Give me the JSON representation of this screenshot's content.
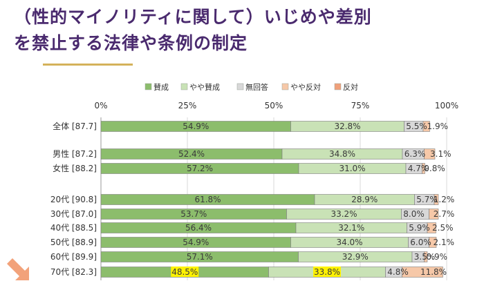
{
  "title": {
    "line1": "（性的マイノリティに関して）いじめや差別",
    "line2": "を禁止する法律や条例の制定"
  },
  "chart_data": {
    "type": "bar",
    "orientation": "horizontal",
    "stacked": "100%",
    "legend_position": "top",
    "xlim": [
      0,
      100
    ],
    "x_ticks": [
      "0%",
      "25%",
      "50%",
      "75%",
      "100%"
    ],
    "categories": [
      "全体 [87.7]",
      "男性 [87.2]",
      "女性 [88.2]",
      "20代 [90.8]",
      "30代 [87.0]",
      "40代 [88.5]",
      "50代 [88.9]",
      "60代 [89.9]",
      "70代 [82.3]"
    ],
    "series": [
      {
        "name": "賛成",
        "color": "#8cbd6c",
        "values": [
          54.9,
          52.4,
          57.2,
          61.8,
          53.7,
          56.4,
          54.9,
          57.1,
          48.5
        ],
        "labels": [
          "54.9%",
          "52.4%",
          "57.2%",
          "61.8%",
          "53.7%",
          "56.4%",
          "54.9%",
          "57.1%",
          "48.5%"
        ]
      },
      {
        "name": "やや賛成",
        "color": "#c9e2b6",
        "values": [
          32.8,
          34.8,
          31.0,
          28.9,
          33.2,
          32.1,
          34.0,
          32.9,
          33.8
        ],
        "labels": [
          "32.8%",
          "34.8%",
          "31.0%",
          "28.9%",
          "33.2%",
          "32.1%",
          "34.0%",
          "32.9%",
          "33.8%"
        ]
      },
      {
        "name": "無回答",
        "color": "#d8d8d8",
        "values": [
          5.5,
          6.3,
          4.7,
          5.7,
          8.0,
          5.9,
          6.0,
          3.5,
          4.8
        ],
        "labels": [
          "5.5%",
          "6.3%",
          "4.7%",
          "5.7%",
          "8.0%",
          "5.9%",
          "6.0%",
          "3.5%",
          "4.8%"
        ]
      },
      {
        "name": "やや反対",
        "color": "#f6c8a8",
        "values": [
          1.9,
          3.1,
          0.8,
          1.2,
          2.7,
          2.5,
          2.1,
          0.9,
          11.8
        ],
        "labels": [
          "1.9%",
          "3.1%",
          "0.8%",
          "1.2%",
          "2.7%",
          "2.5%",
          "2.1%",
          "0.9%",
          "11.8%"
        ]
      },
      {
        "name": "反対",
        "color": "#f0a07a",
        "values": [
          0,
          0,
          0,
          0,
          0,
          0,
          0,
          0,
          0
        ],
        "labels": []
      }
    ],
    "highlighted": {
      "category_index": 8,
      "series_indices": [
        0,
        1
      ],
      "color": "#fff200"
    }
  },
  "annotation": {
    "icon": "arrow-icon",
    "color": "#f2a27a"
  }
}
